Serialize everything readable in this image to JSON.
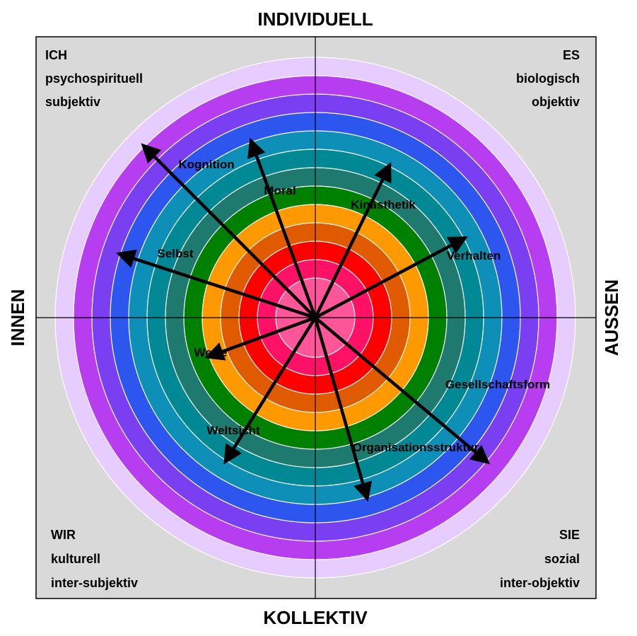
{
  "axes": {
    "top": "INDIVIDUELL",
    "bottom": "KOLLEKTIV",
    "left": "INNEN",
    "right": "AUSSEN"
  },
  "quadrants": {
    "top_left": [
      "ICH",
      "psychospirituell",
      "subjektiv"
    ],
    "top_right": [
      "ES",
      "biologisch",
      "objektiv"
    ],
    "bottom_left": [
      "WIR",
      "kulturell",
      "inter-subjektiv"
    ],
    "bottom_right": [
      "SIE",
      "sozial",
      "inter-objektiv"
    ]
  },
  "rings": [
    "#e6ccff",
    "#b63df0",
    "#7a3ff0",
    "#2c56ee",
    "#0e8fb8",
    "#008994",
    "#1e7a6e",
    "#008000",
    "#ff9900",
    "#e05a00",
    "#ff0000",
    "#ff1166",
    "#ff5599"
  ],
  "colors": {
    "background": "#d9d9d9",
    "frame": "#000000",
    "arrow": "#000000"
  },
  "lines": [
    {
      "label": "Kognition",
      "angle_deg": 135,
      "level": 12
    },
    {
      "label": "Moral",
      "angle_deg": 110,
      "level": 9
    },
    {
      "label": "Kinästhetik",
      "angle_deg": 64,
      "level": 8
    },
    {
      "label": "Verhalten",
      "angle_deg": 28,
      "level": 8
    },
    {
      "label": "Selbst",
      "angle_deg": 162,
      "level": 10
    },
    {
      "label": "Werte",
      "angle_deg": 200,
      "level": 5
    },
    {
      "label": "Weltsicht",
      "angle_deg": 238,
      "level": 8
    },
    {
      "label": "Organisationsstruktur",
      "angle_deg": 286,
      "level": 9
    },
    {
      "label": "Gesellschaftsform",
      "angle_deg": 320,
      "level": 11
    }
  ]
}
